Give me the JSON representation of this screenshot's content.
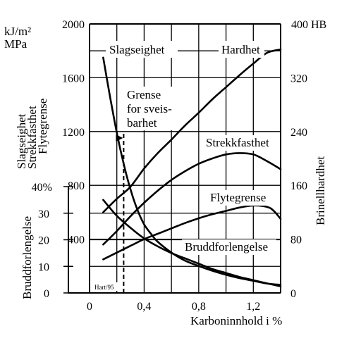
{
  "chart_data": {
    "type": "line",
    "xlabel": "Karboninnhold i %",
    "x_ticks": [
      "0",
      "0,4",
      "0,8",
      "1,2"
    ],
    "x_tick_values": [
      0,
      0.4,
      0.8,
      1.2
    ],
    "xlim": [
      0,
      1.4
    ],
    "left_axis": {
      "unit_line1": "kJ/m²",
      "unit_line2": "MPa",
      "ylabel_lines": [
        "Slagseighet",
        "Strekkfasthet",
        "Flytegrense"
      ],
      "ylim": [
        0,
        2000
      ],
      "ticks": [
        "400",
        "800",
        "1200",
        "1600",
        "2000"
      ],
      "tick_values": [
        400,
        800,
        1200,
        1600,
        2000
      ]
    },
    "elongation_axis": {
      "ylabel": "Bruddforlengelse",
      "ylim": [
        0,
        40
      ],
      "ticks": [
        "0",
        "10",
        "20",
        "30",
        "40%"
      ],
      "tick_values": [
        0,
        10,
        20,
        30,
        40
      ]
    },
    "right_axis": {
      "unit": "400 HB",
      "ylabel": "Brinellhardhet",
      "ylim": [
        0,
        400
      ],
      "ticks": [
        "0",
        "80",
        "160",
        "240",
        "320"
      ],
      "tick_values": [
        0,
        80,
        160,
        240,
        320
      ]
    },
    "series": [
      {
        "name": "Slagseighet",
        "axis": "left",
        "x": [
          0.1,
          0.15,
          0.2,
          0.25,
          0.3,
          0.35,
          0.4,
          0.45,
          0.5,
          0.6,
          0.7,
          0.8,
          0.9,
          1.0,
          1.1,
          1.2,
          1.3,
          1.4
        ],
        "y": [
          1750,
          1460,
          1190,
          960,
          770,
          620,
          510,
          440,
          380,
          300,
          240,
          200,
          165,
          135,
          110,
          90,
          70,
          60
        ]
      },
      {
        "name": "Hardhet",
        "axis": "right",
        "x": [
          0.1,
          0.2,
          0.3,
          0.4,
          0.5,
          0.6,
          0.7,
          0.8,
          0.9,
          1.0,
          1.1,
          1.2,
          1.3,
          1.4
        ],
        "y": [
          120,
          140,
          158,
          185,
          208,
          228,
          249,
          268,
          288,
          306,
          324,
          341,
          357,
          362
        ]
      },
      {
        "name": "Strekkfasthet",
        "axis": "left",
        "x": [
          0.1,
          0.2,
          0.3,
          0.4,
          0.5,
          0.6,
          0.7,
          0.8,
          0.9,
          1.0,
          1.1,
          1.2,
          1.3,
          1.4
        ],
        "y": [
          360,
          460,
          570,
          670,
          760,
          840,
          905,
          960,
          1000,
          1030,
          1040,
          1030,
          980,
          920
        ]
      },
      {
        "name": "Flytegrense",
        "axis": "left",
        "x": [
          0.1,
          0.2,
          0.3,
          0.4,
          0.5,
          0.6,
          0.7,
          0.8,
          0.9,
          1.0,
          1.1,
          1.2,
          1.3,
          1.35,
          1.4
        ],
        "y": [
          250,
          300,
          350,
          400,
          440,
          480,
          520,
          555,
          585,
          610,
          635,
          650,
          640,
          610,
          550
        ]
      },
      {
        "name": "Bruddforlengelse",
        "axis": "elongation",
        "x": [
          0.1,
          0.2,
          0.3,
          0.4,
          0.5,
          0.6,
          0.7,
          0.8,
          0.9,
          1.0,
          1.1,
          1.2,
          1.3,
          1.4
        ],
        "y": [
          35,
          29,
          24.5,
          20.5,
          17.5,
          15,
          13,
          11,
          9,
          7.5,
          6,
          4.8,
          3.6,
          2.5
        ]
      }
    ],
    "annotations": {
      "series_labels": [
        "Slagseighet",
        "Hardhet",
        "Strekkfasthet",
        "Flytegrense",
        "Bruddforlengelse"
      ],
      "weldability_label": [
        "Grense",
        "for sveis-",
        "barhet"
      ],
      "weldability_limit_x": 0.25,
      "source": "Hart/95"
    },
    "grid": true
  }
}
